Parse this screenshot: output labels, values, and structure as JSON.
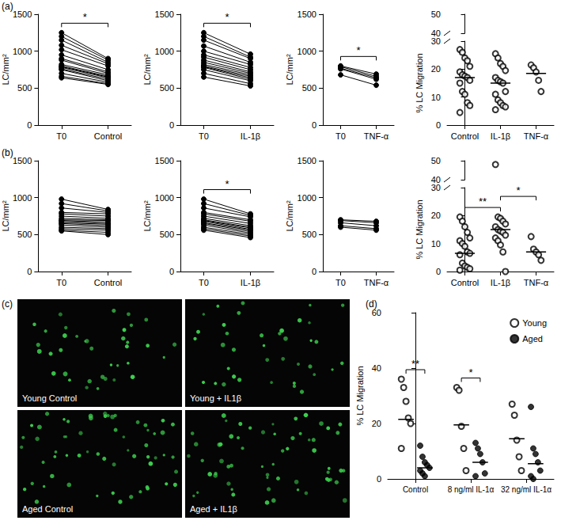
{
  "chart_data": [
    {
      "type": "paired",
      "title": "(a)",
      "categories": [
        "T0",
        "Control"
      ],
      "ylabel": "LC/mm²",
      "ylim": [
        0,
        1500
      ],
      "yticks": [
        0,
        500,
        1000,
        1500
      ],
      "grid": false,
      "color": "#000000",
      "marker": "circle",
      "pairs": [
        [
          1250,
          900
        ],
        [
          1200,
          880
        ],
        [
          1150,
          850
        ],
        [
          1080,
          830
        ],
        [
          1020,
          800
        ],
        [
          950,
          750
        ],
        [
          900,
          720
        ],
        [
          880,
          700
        ],
        [
          820,
          680
        ],
        [
          800,
          660
        ],
        [
          790,
          650
        ],
        [
          780,
          640
        ],
        [
          760,
          620
        ],
        [
          750,
          600
        ],
        [
          700,
          580
        ],
        [
          660,
          560
        ],
        [
          640,
          550
        ]
      ],
      "annotations": [
        {
          "text": "*",
          "from": "T0",
          "to": "Control"
        }
      ]
    },
    {
      "type": "paired",
      "categories": [
        "T0",
        "IL-1β"
      ],
      "ylabel": "LC/mm²",
      "ylim": [
        0,
        1500
      ],
      "yticks": [
        0,
        500,
        1000,
        1500
      ],
      "grid": false,
      "color": "#000000",
      "marker": "circle",
      "pairs": [
        [
          1250,
          960
        ],
        [
          1200,
          920
        ],
        [
          1150,
          900
        ],
        [
          1070,
          850
        ],
        [
          1000,
          820
        ],
        [
          950,
          780
        ],
        [
          920,
          750
        ],
        [
          880,
          720
        ],
        [
          850,
          700
        ],
        [
          820,
          680
        ],
        [
          800,
          660
        ],
        [
          790,
          640
        ],
        [
          780,
          620
        ],
        [
          750,
          600
        ],
        [
          700,
          560
        ],
        [
          650,
          530
        ]
      ],
      "annotations": [
        {
          "text": "*",
          "from": "T0",
          "to": "IL-1β"
        }
      ]
    },
    {
      "type": "paired",
      "categories": [
        "T0",
        "TNF-α"
      ],
      "ylabel": "LC/mm²",
      "ylim": [
        0,
        1500
      ],
      "yticks": [
        0,
        500,
        1000,
        1500
      ],
      "grid": false,
      "color": "#000000",
      "marker": "circle",
      "pairs": [
        [
          800,
          690
        ],
        [
          790,
          660
        ],
        [
          770,
          640
        ],
        [
          760,
          620
        ],
        [
          680,
          540
        ]
      ],
      "annotations": [
        {
          "text": "*",
          "from": "T0",
          "to": "TNF-α"
        }
      ]
    },
    {
      "type": "scatter",
      "categories": [
        "Control",
        "IL-1β",
        "TNF-α"
      ],
      "ylabel": "% LC Migration",
      "ylim": [
        0,
        50
      ],
      "yticks": [
        0,
        10,
        20,
        30,
        40,
        50
      ],
      "axis_break": [
        30,
        40
      ],
      "grid": false,
      "color": "#000000",
      "marker": "open circle",
      "values": [
        [
          27,
          26,
          24,
          23,
          21,
          19,
          18,
          17.5,
          17,
          16,
          15,
          12,
          11,
          8,
          7,
          4.5
        ],
        [
          25.5,
          24,
          22,
          21,
          19.5,
          17,
          16,
          15.5,
          15,
          12,
          11,
          9,
          8,
          7,
          6.5,
          5.5
        ],
        [
          21.5,
          20.5,
          19,
          16,
          12
        ]
      ],
      "center_lines": [
        17,
        15,
        18.5
      ],
      "annotations": []
    },
    {
      "type": "paired",
      "title": "(b)",
      "categories": [
        "T0",
        "Control"
      ],
      "ylabel": "LC/mm²",
      "ylim": [
        0,
        1500
      ],
      "yticks": [
        0,
        500,
        1000,
        1500
      ],
      "grid": false,
      "color": "#000000",
      "marker": "circle",
      "pairs": [
        [
          980,
          840
        ],
        [
          920,
          820
        ],
        [
          860,
          800
        ],
        [
          800,
          780
        ],
        [
          780,
          750
        ],
        [
          750,
          720
        ],
        [
          720,
          700
        ],
        [
          700,
          690
        ],
        [
          690,
          670
        ],
        [
          680,
          650
        ],
        [
          660,
          640
        ],
        [
          650,
          620
        ],
        [
          630,
          600
        ],
        [
          600,
          580
        ],
        [
          580,
          560
        ],
        [
          560,
          530
        ],
        [
          550,
          500
        ]
      ],
      "annotations": []
    },
    {
      "type": "paired",
      "categories": [
        "T0",
        "IL-1β"
      ],
      "ylabel": "LC/mm²",
      "ylim": [
        0,
        1500
      ],
      "yticks": [
        0,
        500,
        1000,
        1500
      ],
      "grid": false,
      "color": "#000000",
      "marker": "circle",
      "pairs": [
        [
          980,
          780
        ],
        [
          920,
          760
        ],
        [
          860,
          740
        ],
        [
          800,
          700
        ],
        [
          780,
          680
        ],
        [
          750,
          650
        ],
        [
          720,
          620
        ],
        [
          700,
          600
        ],
        [
          690,
          590
        ],
        [
          680,
          570
        ],
        [
          660,
          560
        ],
        [
          650,
          540
        ],
        [
          630,
          520
        ],
        [
          600,
          500
        ],
        [
          580,
          480
        ],
        [
          560,
          460
        ]
      ],
      "annotations": [
        {
          "text": "*",
          "from": "T0",
          "to": "IL-1β"
        }
      ]
    },
    {
      "type": "paired",
      "categories": [
        "T0",
        "TNF-α"
      ],
      "ylabel": "LC/mm²",
      "ylim": [
        0,
        1500
      ],
      "yticks": [
        0,
        500,
        1000,
        1500
      ],
      "grid": false,
      "color": "#000000",
      "marker": "circle",
      "pairs": [
        [
          700,
          680
        ],
        [
          690,
          660
        ],
        [
          660,
          620
        ],
        [
          620,
          580
        ],
        [
          600,
          560
        ]
      ],
      "annotations": []
    },
    {
      "type": "scatter",
      "categories": [
        "Control",
        "IL-1β",
        "TNF-α"
      ],
      "ylabel": "% LC Migration",
      "ylim": [
        0,
        50
      ],
      "yticks": [
        0,
        10,
        20,
        30,
        40,
        50
      ],
      "axis_break": [
        30,
        40
      ],
      "grid": false,
      "color": "#000000",
      "marker": "open circle",
      "values": [
        [
          19.5,
          18,
          16,
          14,
          12,
          11,
          10,
          9,
          7,
          6.5,
          6,
          3,
          2,
          1.5,
          1,
          0.5
        ],
        [
          48,
          19.5,
          19,
          18,
          17,
          16,
          15,
          14.5,
          14,
          13,
          12,
          11,
          9.5,
          7,
          0
        ],
        [
          12.5,
          8,
          7,
          6,
          4
        ]
      ],
      "center_lines": [
        6.5,
        15,
        7
      ],
      "annotations": [
        {
          "text": "**",
          "from": "Control",
          "to": "IL-1β"
        },
        {
          "text": "*",
          "from": "IL-1β",
          "to": "TNF-α"
        }
      ]
    },
    {
      "type": "scatter",
      "title": "(d)",
      "categories": [
        "Control",
        "8 ng/ml IL-1α",
        "32 ng/ml IL-1α"
      ],
      "ylabel": "% LC Migration",
      "ylim": [
        0,
        60
      ],
      "yticks": [
        0,
        20,
        40,
        60
      ],
      "grid": false,
      "legend": "top-right",
      "series": [
        {
          "name": "Young",
          "color": "#000000",
          "marker": "open circle",
          "values": [
            [
              36,
              33,
              28,
              22,
              20,
              11
            ],
            [
              33,
              32,
              19,
              11,
              3
            ],
            [
              27,
              23,
              14,
              8,
              3
            ]
          ],
          "center_lines": [
            21.5,
            19.5,
            14.5
          ]
        },
        {
          "name": "Aged",
          "color": "#000000",
          "marker": "filled circle",
          "values": [
            [
              12,
              8,
              6,
              5,
              4,
              3,
              2,
              1
            ],
            [
              13,
              11,
              9,
              6,
              2,
              1
            ],
            [
              26,
              11,
              9,
              6,
              3,
              1,
              0
            ]
          ],
          "center_lines": [
            4,
            6,
            5.5
          ]
        }
      ],
      "annotations": [
        {
          "text": "**",
          "category": "Control"
        },
        {
          "text": "*",
          "category": "8 ng/ml IL-1α"
        }
      ]
    }
  ],
  "image": {
    "title": "(c)",
    "panels": [
      "Young Control",
      "Young + IL1β",
      "Aged Control",
      "Aged + IL1β"
    ]
  }
}
